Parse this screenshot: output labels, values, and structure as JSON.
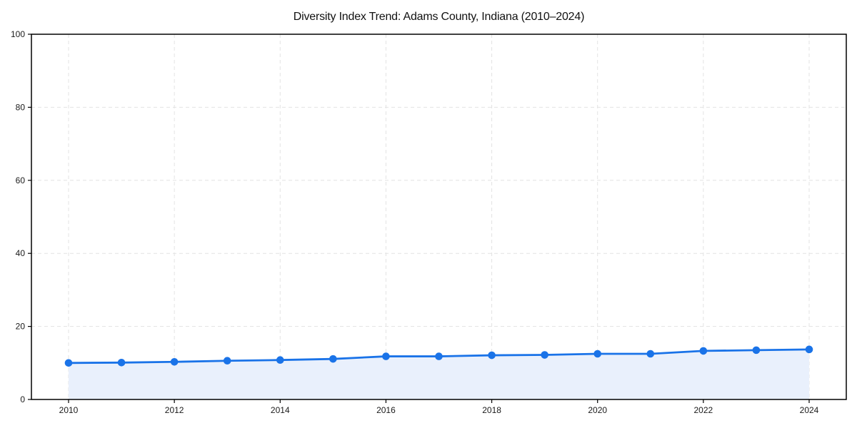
{
  "chart_data": {
    "type": "line",
    "title": "Diversity Index Trend: Adams County, Indiana (2010–2024)",
    "x": [
      2010,
      2011,
      2012,
      2013,
      2014,
      2015,
      2016,
      2017,
      2018,
      2019,
      2020,
      2021,
      2022,
      2023,
      2024
    ],
    "series": [
      {
        "name": "Diversity Index",
        "values": [
          10.0,
          10.1,
          10.3,
          10.6,
          10.8,
          11.1,
          11.8,
          11.8,
          12.1,
          12.2,
          12.5,
          12.5,
          13.3,
          13.5,
          13.7
        ]
      }
    ],
    "xlabel": "",
    "ylabel": "",
    "ylim": [
      0,
      100
    ],
    "y_ticks": [
      0,
      20,
      40,
      60,
      80,
      100
    ],
    "x_ticks": [
      2010,
      2012,
      2014,
      2016,
      2018,
      2020,
      2022,
      2024
    ],
    "grid": "dashed",
    "legend": "none",
    "fill_to_zero": true,
    "marker": "circle",
    "colors": {
      "line": "#1a73e8",
      "marker": "#1a73e8",
      "area_fill": "#e9f0fc",
      "grid": "#e3e3e3",
      "spine": "#000000",
      "tick": "#000000",
      "tick_label": "#1a1a1a",
      "background": "#ffffff"
    }
  }
}
